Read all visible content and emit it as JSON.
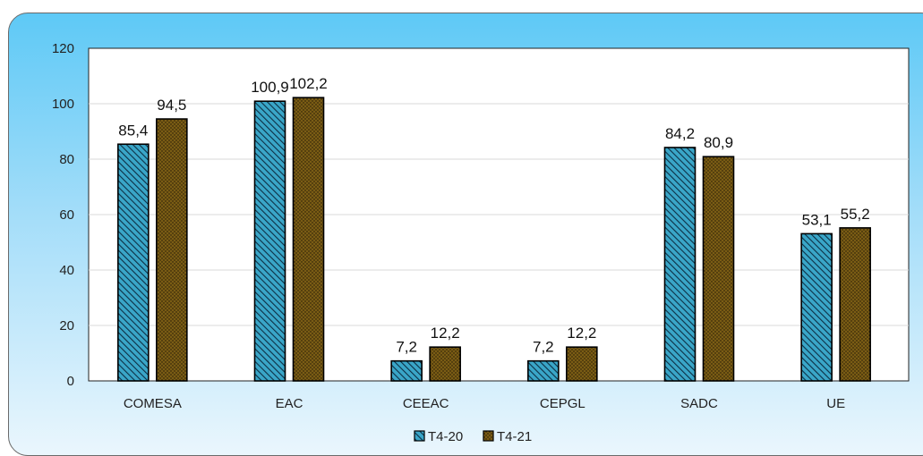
{
  "chart_data": {
    "type": "bar",
    "categories": [
      "COMESA",
      "EAC",
      "CEEAC",
      "CEPGL",
      "SADC",
      "UE"
    ],
    "series": [
      {
        "name": "T4-20",
        "values": [
          85.4,
          100.9,
          7.2,
          7.2,
          84.2,
          53.1
        ],
        "labels": [
          "85,4",
          "100,9",
          "7,2",
          "7,2",
          "84,2",
          "53,1"
        ],
        "color": "#3aa6c8"
      },
      {
        "name": "T4-21",
        "values": [
          94.5,
          102.2,
          12.2,
          12.2,
          80.9,
          55.2
        ],
        "labels": [
          "94,5",
          "102,2",
          "12,2",
          "12,2",
          "80,9",
          "55,2"
        ],
        "color": "#7a5c14"
      }
    ],
    "ylim": [
      0,
      120
    ],
    "yticks": [
      0,
      20,
      40,
      60,
      80,
      100,
      120
    ],
    "grid": true,
    "legend": "bottom-center"
  },
  "colors": {
    "background_top": "#5ec9f6",
    "background_bottom": "#eaf6fd",
    "plot_area": "#ffffff",
    "gridline": "#d9d9d9"
  }
}
